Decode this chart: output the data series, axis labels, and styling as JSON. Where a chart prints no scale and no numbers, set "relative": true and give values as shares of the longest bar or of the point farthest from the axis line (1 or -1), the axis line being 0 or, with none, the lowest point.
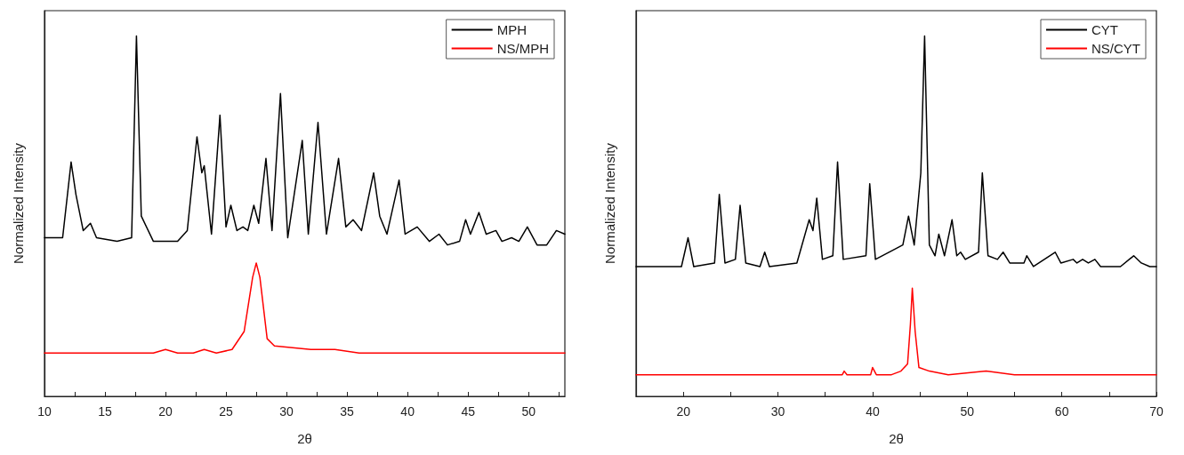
{
  "chart_data": [
    {
      "type": "line",
      "relative": true,
      "xlabel": "2θ",
      "ylabel": "Normalized Intensity",
      "xlim": [
        10,
        53
      ],
      "xticks": [
        10,
        {
          "value": 12.5,
          "label": null
        },
        15,
        {
          "value": 17.5,
          "label": null
        },
        20,
        {
          "value": 22.5,
          "label": null
        },
        25,
        {
          "value": 27.5,
          "label": null
        },
        30,
        {
          "value": 32.5,
          "label": null
        },
        35,
        {
          "value": 37.5,
          "label": null
        },
        40,
        {
          "value": 42.5,
          "label": null
        },
        45,
        {
          "value": 47.5,
          "label": null
        },
        50,
        {
          "value": 52.5,
          "label": null
        }
      ],
      "tick_labels": "x",
      "legend": "top right",
      "grid": false,
      "line_style": "solid",
      "series": [
        {
          "name": "MPH",
          "color": "#000000",
          "x": [
            10,
            11.5,
            12.2,
            12.6,
            13.2,
            13.8,
            14.3,
            16,
            17.2,
            17.6,
            18,
            19,
            21,
            21.8,
            22.6,
            23,
            23.2,
            23.8,
            24.5,
            25,
            25.4,
            25.9,
            26.4,
            26.8,
            27.3,
            27.7,
            28.3,
            28.8,
            29.5,
            30.1,
            31.3,
            31.8,
            32.6,
            33.3,
            34.3,
            34.9,
            35.5,
            36.2,
            37.2,
            37.7,
            38.3,
            39.3,
            39.8,
            40.8,
            41.8,
            42.6,
            43.3,
            44.3,
            44.8,
            45.2,
            45.9,
            46.5,
            47.3,
            47.8,
            48.6,
            49.2,
            49.9,
            50.7,
            51.5,
            52.3,
            53
          ],
          "values": [
            0.44,
            0.44,
            0.65,
            0.56,
            0.46,
            0.48,
            0.44,
            0.43,
            0.44,
            1.0,
            0.5,
            0.43,
            0.43,
            0.46,
            0.72,
            0.62,
            0.64,
            0.45,
            0.78,
            0.47,
            0.53,
            0.46,
            0.47,
            0.46,
            0.53,
            0.48,
            0.66,
            0.46,
            0.84,
            0.44,
            0.71,
            0.45,
            0.76,
            0.45,
            0.66,
            0.47,
            0.49,
            0.46,
            0.62,
            0.5,
            0.45,
            0.6,
            0.45,
            0.47,
            0.43,
            0.45,
            0.42,
            0.43,
            0.49,
            0.45,
            0.51,
            0.45,
            0.46,
            0.43,
            0.44,
            0.43,
            0.47,
            0.42,
            0.42,
            0.46,
            0.45
          ]
        },
        {
          "name": "NS/MPH",
          "color": "#ff0000",
          "x": [
            10,
            19,
            20,
            21,
            22.3,
            23.2,
            24.2,
            25.5,
            26.5,
            27.2,
            27.5,
            27.8,
            28.4,
            29,
            32,
            34,
            36,
            40,
            53
          ],
          "values": [
            0.12,
            0.12,
            0.13,
            0.12,
            0.12,
            0.13,
            0.12,
            0.13,
            0.18,
            0.33,
            0.37,
            0.33,
            0.16,
            0.14,
            0.13,
            0.13,
            0.12,
            0.12,
            0.12
          ]
        }
      ]
    },
    {
      "type": "line",
      "relative": true,
      "xlabel": "2θ",
      "ylabel": "Normalized Intensity",
      "xlim": [
        15,
        70
      ],
      "xticks": [
        {
          "value": 15,
          "label": null
        },
        20,
        {
          "value": 25,
          "label": null
        },
        30,
        {
          "value": 35,
          "label": null
        },
        40,
        {
          "value": 45,
          "label": null
        },
        50,
        {
          "value": 55,
          "label": null
        },
        60,
        {
          "value": 65,
          "label": null
        },
        70
      ],
      "tick_labels": "x",
      "legend": "top right",
      "grid": false,
      "line_style": "solid",
      "series": [
        {
          "name": "CYT",
          "color": "#000000",
          "x": [
            15,
            19.8,
            20.5,
            21.1,
            23.3,
            23.8,
            24.4,
            25.5,
            26,
            26.6,
            28.1,
            28.6,
            29.1,
            32,
            33.3,
            33.7,
            34.1,
            34.7,
            35.8,
            36.3,
            36.9,
            39.3,
            39.7,
            40.3,
            43.2,
            43.8,
            44.4,
            45.1,
            45.5,
            46,
            46.6,
            47,
            47.6,
            48.4,
            48.9,
            49.3,
            49.8,
            51.2,
            51.6,
            52.2,
            53.2,
            53.8,
            54.5,
            56,
            56.3,
            57,
            59.3,
            59.9,
            61.2,
            61.6,
            62.2,
            62.8,
            63.5,
            64.1,
            66.2,
            67.6,
            68.4,
            69.3,
            70
          ],
          "values": [
            0.36,
            0.36,
            0.44,
            0.36,
            0.37,
            0.56,
            0.37,
            0.38,
            0.53,
            0.37,
            0.36,
            0.4,
            0.36,
            0.37,
            0.49,
            0.46,
            0.55,
            0.38,
            0.39,
            0.65,
            0.38,
            0.39,
            0.59,
            0.38,
            0.42,
            0.5,
            0.42,
            0.62,
            1.0,
            0.42,
            0.39,
            0.45,
            0.39,
            0.49,
            0.39,
            0.4,
            0.38,
            0.4,
            0.62,
            0.39,
            0.38,
            0.4,
            0.37,
            0.37,
            0.39,
            0.36,
            0.4,
            0.37,
            0.38,
            0.37,
            0.38,
            0.37,
            0.38,
            0.36,
            0.36,
            0.39,
            0.37,
            0.36,
            0.36
          ]
        },
        {
          "name": "NS/CYT",
          "color": "#ff0000",
          "x": [
            15,
            36.8,
            37,
            37.3,
            39.8,
            40,
            40.4,
            42,
            43,
            43.7,
            44,
            44.2,
            44.5,
            44.9,
            46,
            48,
            52,
            55,
            70
          ],
          "values": [
            0.06,
            0.06,
            0.07,
            0.06,
            0.06,
            0.08,
            0.06,
            0.06,
            0.07,
            0.09,
            0.2,
            0.3,
            0.18,
            0.08,
            0.07,
            0.06,
            0.07,
            0.06,
            0.06
          ]
        }
      ]
    }
  ]
}
